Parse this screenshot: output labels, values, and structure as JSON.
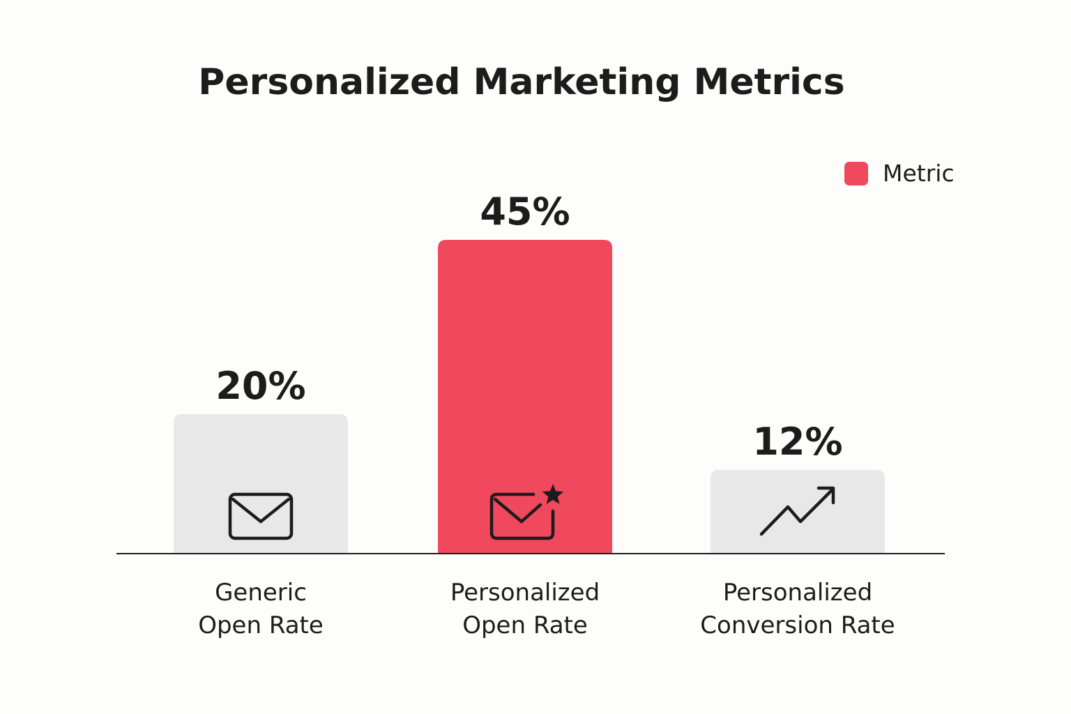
{
  "chart_data": {
    "type": "bar",
    "title": "Personalized Marketing Metrics",
    "categories": [
      {
        "line1": "Generic",
        "line2": "Open Rate"
      },
      {
        "line1": "Personalized",
        "line2": "Open Rate"
      },
      {
        "line1": "Personalized",
        "line2": "Conversion Rate"
      }
    ],
    "values": [
      20,
      45,
      12
    ],
    "value_labels": [
      "20%",
      "45%",
      "12%"
    ],
    "highlighted": [
      false,
      true,
      false
    ],
    "icons": [
      "envelope-icon",
      "envelope-star-icon",
      "trend-up-icon"
    ],
    "ylim": [
      0,
      50
    ],
    "xlabel": "",
    "ylabel": "",
    "grid": false,
    "legend": {
      "label": "Metric",
      "placement": "top-right"
    },
    "colors": {
      "highlight": "#f0485c",
      "muted": "#e8e8e8",
      "text": "#1c1c1c",
      "axis": "#1c1c1c"
    }
  }
}
